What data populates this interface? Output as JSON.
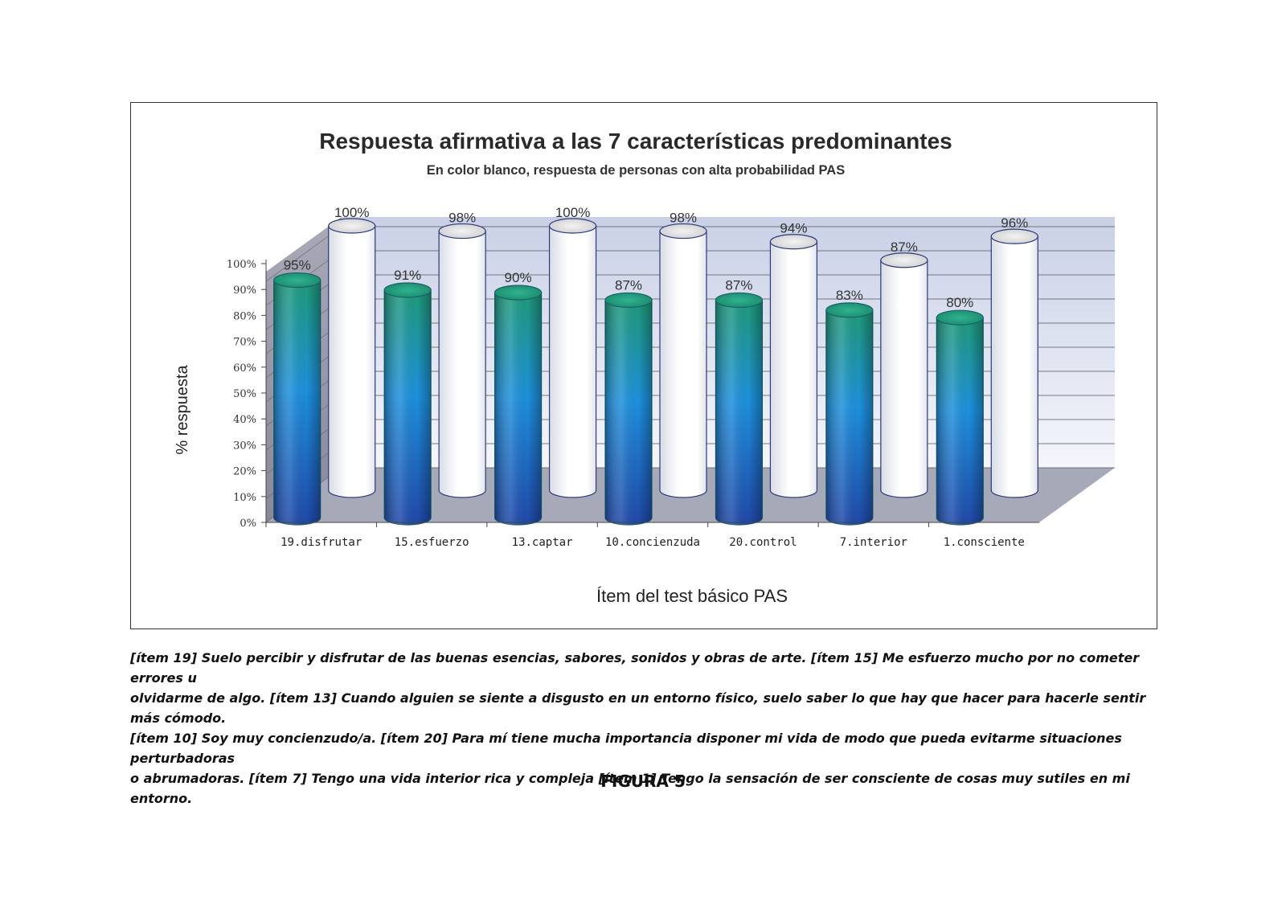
{
  "chart_data": {
    "type": "bar",
    "title": "Respuesta afirmativa a las 7 características predominantes",
    "subtitle": "En color blanco, respuesta de personas con alta probabilidad PAS",
    "xlabel": "Ítem del test básico PAS",
    "ylabel": "% respuesta",
    "ylim": [
      0,
      100
    ],
    "yticks": [
      "0%",
      "10%",
      "20%",
      "30%",
      "40%",
      "50%",
      "60%",
      "70%",
      "80%",
      "90%",
      "100%"
    ],
    "categories": [
      "19.disfrutar",
      "15.esfuerzo",
      "13.captar",
      "10.concienzuda",
      "20.control",
      "7.interior",
      "1.consciente"
    ],
    "series": [
      {
        "values": [
          95,
          91,
          90,
          87,
          87,
          83,
          80
        ],
        "labels": [
          "95%",
          "91%",
          "90%",
          "87%",
          "87%",
          "83%",
          "80%"
        ],
        "color": "#1e88d8"
      },
      {
        "values": [
          100,
          98,
          100,
          98,
          94,
          87,
          96
        ],
        "labels": [
          "100%",
          "98%",
          "100%",
          "98%",
          "94%",
          "87%",
          "96%"
        ],
        "color": "#ffffff"
      }
    ],
    "grid": true
  },
  "caption": {
    "lines": [
      "[ítem 19] Suelo percibir y disfrutar de las buenas esencias, sabores, sonidos y obras de arte.  [ítem 15] Me esfuerzo mucho por no cometer errores u",
      "olvidarme de algo. [ítem 13] Cuando alguien se siente a disgusto en un entorno físico, suelo saber lo que hay que hacer para hacerle sentir más cómodo.",
      "[ítem 10] Soy muy concienzudo/a. [ítem 20] Para mí tiene mucha importancia disponer mi vida de modo que pueda evitarme situaciones perturbadoras",
      "o abrumadoras.  [ítem 7] Tengo una vida interior rica y compleja  [ítem 1] Tengo la sensación de ser consciente de cosas muy sutiles en mi entorno."
    ]
  },
  "figure_label": "FIGURA 5"
}
